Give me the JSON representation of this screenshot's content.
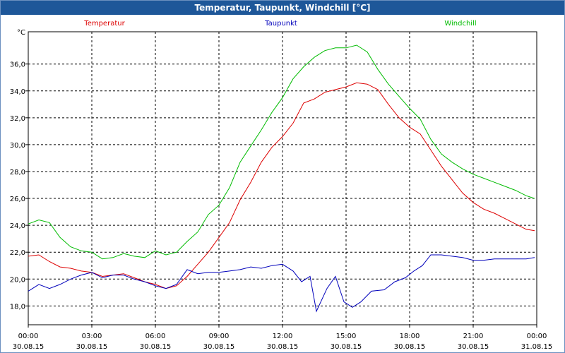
{
  "window": {
    "title": "Temperatur, Taupunkt, Windchill [°C]"
  },
  "chart_data": {
    "type": "line",
    "ylabel": "°C",
    "ylim": [
      16.6,
      38.4
    ],
    "xlim": [
      0,
      24
    ],
    "grid": true,
    "legend_placement": "top",
    "y_ticks": [
      18.0,
      20.0,
      22.0,
      24.0,
      26.0,
      28.0,
      30.0,
      32.0,
      34.0,
      36.0
    ],
    "y_tick_labels": [
      "18,0",
      "20,0",
      "22,0",
      "24,0",
      "26,0",
      "28,0",
      "30,0",
      "32,0",
      "34,0",
      "36,0"
    ],
    "x_ticks": [
      {
        "time": "00:00",
        "date": "30.08.15",
        "value": 0
      },
      {
        "time": "03:00",
        "date": "30.08.15",
        "value": 3
      },
      {
        "time": "06:00",
        "date": "30.08.15",
        "value": 6
      },
      {
        "time": "09:00",
        "date": "30.08.15",
        "value": 9
      },
      {
        "time": "12:00",
        "date": "30.08.15",
        "value": 12
      },
      {
        "time": "15:00",
        "date": "30.08.15",
        "value": 15
      },
      {
        "time": "18:00",
        "date": "30.08.15",
        "value": 18
      },
      {
        "time": "21:00",
        "date": "30.08.15",
        "value": 21
      },
      {
        "time": "00:00",
        "date": "31.08.15",
        "value": 24
      }
    ],
    "series": [
      {
        "name": "Temperatur",
        "color": "#dd0000",
        "x": [
          0,
          0.5,
          1,
          1.5,
          2,
          2.5,
          3,
          3.5,
          4,
          4.5,
          5,
          5.5,
          6,
          6.5,
          7,
          7.5,
          8,
          8.5,
          9,
          9.5,
          10,
          10.5,
          11,
          11.5,
          12,
          12.5,
          13,
          13.5,
          14,
          14.5,
          15,
          15.5,
          16,
          16.5,
          17,
          17.5,
          18,
          18.5,
          19,
          19.5,
          20,
          20.5,
          21,
          21.5,
          22,
          22.5,
          23,
          23.5,
          23.9
        ],
        "values": [
          21.7,
          21.8,
          21.3,
          20.9,
          20.8,
          20.6,
          20.5,
          20.2,
          20.3,
          20.4,
          20.1,
          19.8,
          19.6,
          19.3,
          19.5,
          20.2,
          21.1,
          22.0,
          23.1,
          24.2,
          25.9,
          27.2,
          28.7,
          29.8,
          30.6,
          31.6,
          33.1,
          33.4,
          33.9,
          34.1,
          34.3,
          34.6,
          34.5,
          34.1,
          33.0,
          32.0,
          31.3,
          30.8,
          29.6,
          28.4,
          27.4,
          26.4,
          25.7,
          25.2,
          24.9,
          24.5,
          24.1,
          23.7,
          23.6
        ]
      },
      {
        "name": "Taupunkt",
        "color": "#0000bb",
        "x": [
          0,
          0.5,
          1,
          1.5,
          2,
          2.5,
          3,
          3.5,
          4,
          4.5,
          5,
          5.5,
          6,
          6.5,
          7,
          7.5,
          8,
          8.5,
          9,
          9.5,
          10,
          10.5,
          11,
          11.5,
          12,
          12.5,
          12.9,
          13.3,
          13.6,
          14.1,
          14.5,
          14.9,
          15.3,
          15.7,
          16.2,
          16.8,
          17.3,
          17.8,
          18.2,
          18.6,
          19,
          19.5,
          20,
          20.5,
          21,
          21.5,
          22,
          22.5,
          23,
          23.5,
          23.9
        ],
        "values": [
          19.1,
          19.6,
          19.3,
          19.6,
          20.0,
          20.3,
          20.5,
          20.1,
          20.3,
          20.3,
          20.0,
          19.8,
          19.5,
          19.3,
          19.6,
          20.7,
          20.4,
          20.5,
          20.5,
          20.6,
          20.7,
          20.9,
          20.8,
          21.0,
          21.1,
          20.6,
          19.8,
          20.2,
          17.6,
          19.3,
          20.2,
          18.3,
          17.9,
          18.3,
          19.1,
          19.2,
          19.8,
          20.1,
          20.6,
          21.0,
          21.8,
          21.8,
          21.7,
          21.6,
          21.4,
          21.4,
          21.5,
          21.5,
          21.5,
          21.5,
          21.6
        ]
      },
      {
        "name": "Windchill",
        "color": "#00bb00",
        "x": [
          0,
          0.5,
          1,
          1.5,
          2,
          2.5,
          3,
          3.5,
          4,
          4.5,
          5,
          5.5,
          6,
          6.5,
          7,
          7.5,
          8,
          8.5,
          9,
          9.5,
          10,
          10.5,
          11,
          11.5,
          12,
          12.5,
          13,
          13.5,
          14,
          14.5,
          15,
          15.5,
          16,
          16.5,
          17,
          17.5,
          18,
          18.5,
          19,
          19.5,
          20,
          20.5,
          21,
          21.5,
          22,
          22.5,
          23,
          23.5,
          23.9
        ],
        "values": [
          24.1,
          24.4,
          24.2,
          23.1,
          22.4,
          22.1,
          22.0,
          21.5,
          21.6,
          21.9,
          21.7,
          21.6,
          22.1,
          21.8,
          22.0,
          22.8,
          23.5,
          24.8,
          25.5,
          26.8,
          28.7,
          29.9,
          31.1,
          32.4,
          33.5,
          34.9,
          35.8,
          36.5,
          37.0,
          37.2,
          37.2,
          37.4,
          36.9,
          35.6,
          34.5,
          33.6,
          32.7,
          31.9,
          30.4,
          29.3,
          28.7,
          28.2,
          27.8,
          27.5,
          27.2,
          26.9,
          26.6,
          26.2,
          26.0
        ]
      }
    ]
  }
}
